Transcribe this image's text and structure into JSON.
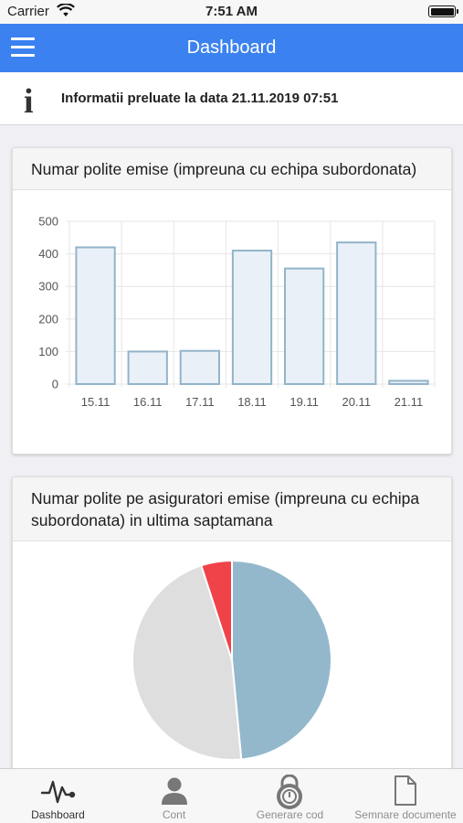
{
  "status_bar": {
    "carrier": "Carrier",
    "time": "7:51 AM"
  },
  "navbar": {
    "title": "Dashboard"
  },
  "info": {
    "icon": "info-icon",
    "text": "Informatii preluate la data 21.11.2019 07:51"
  },
  "card1": {
    "title": "Numar polite emise (impreuna cu echipa subordonata)"
  },
  "card2": {
    "title": "Numar polite pe asiguratori emise (impreuna cu echipa subordonata) in ultima saptamana"
  },
  "chart_data": [
    {
      "type": "bar",
      "title": "Numar polite emise (impreuna cu echipa subordonata)",
      "categories": [
        "15.11",
        "16.11",
        "17.11",
        "18.11",
        "19.11",
        "20.11",
        "21.11"
      ],
      "values": [
        420,
        100,
        102,
        410,
        355,
        435,
        10
      ],
      "ylim": [
        0,
        500
      ],
      "yticks": [
        0,
        100,
        200,
        300,
        400,
        500
      ],
      "xlabel": "",
      "ylabel": "",
      "grid": true,
      "colors": {
        "fill": "#eaf0f8",
        "stroke": "#92b4c8"
      }
    },
    {
      "type": "pie",
      "title": "Numar polite pe asiguratori emise (impreuna cu echipa subordonata) in ultima saptamana",
      "values": [
        48.5,
        46.5,
        5
      ],
      "colors": [
        "#93b8cc",
        "#dedede",
        "#ef4249"
      ]
    }
  ],
  "tabs": [
    {
      "label": "Dashboard",
      "icon": "pulse-icon",
      "active": true
    },
    {
      "label": "Cont",
      "icon": "user-icon",
      "active": false
    },
    {
      "label": "Generare cod",
      "icon": "padlock-icon",
      "active": false
    },
    {
      "label": "Semnare documente",
      "icon": "document-icon",
      "active": false
    }
  ]
}
